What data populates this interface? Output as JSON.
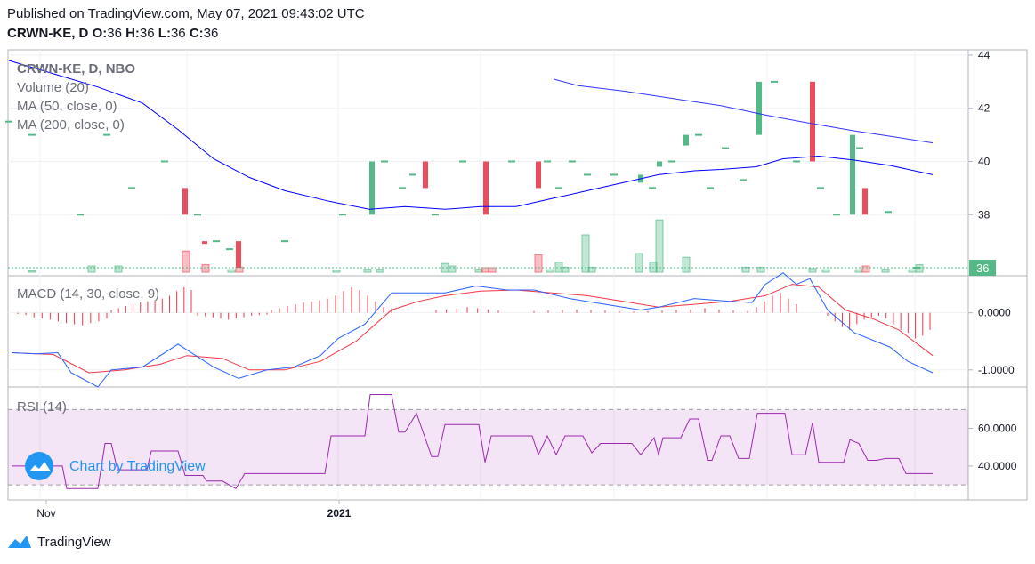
{
  "header": {
    "published": "Published on TradingView.com, May 07, 2021 09:43:02 UTC",
    "symbol": "CRWN-KE, D",
    "o_label": "O:",
    "o_value": "36",
    "h_label": "H:",
    "h_value": "36",
    "l_label": "L:",
    "l_value": "36",
    "c_label": "C:",
    "c_value": "36"
  },
  "footer": {
    "brand": "TradingView"
  },
  "watermark": "Chart by TradingView",
  "colors": {
    "up": "#53b987",
    "down": "#eb4d5c",
    "ma50": "#0000ff",
    "ma200": "#3333ff",
    "macd": "#2962ff",
    "signal": "#f23645",
    "rsi": "#9c27b0",
    "rsi_band": "#e7d3ee"
  },
  "chart_data": [
    {
      "type": "candlestick",
      "legend": [
        "CRWN-KE, D, NBO",
        "Volume (20)",
        "MA (50, close, 0)",
        "MA (200, close, 0)"
      ],
      "y_ticks": [
        "44",
        "42",
        "40",
        "38"
      ],
      "ylim": [
        35.7,
        44.2
      ],
      "last_price_label": "36",
      "last_price": 36,
      "x_ticks": [
        "Nov",
        "2021"
      ],
      "candles": [
        {
          "x": 10,
          "o": 41.5,
          "c": 41.5
        },
        {
          "x": 36,
          "o": 41,
          "c": 41
        },
        {
          "x": 90,
          "o": 38,
          "c": 38
        },
        {
          "x": 120,
          "o": 41,
          "c": 41
        },
        {
          "x": 148,
          "o": 39,
          "c": 39
        },
        {
          "x": 185,
          "o": 40,
          "c": 40
        },
        {
          "x": 208,
          "o": 39,
          "c": 38
        },
        {
          "x": 222,
          "o": 38,
          "c": 38
        },
        {
          "x": 230,
          "o": 37,
          "c": 36.9
        },
        {
          "x": 243,
          "o": 37,
          "c": 37
        },
        {
          "x": 258,
          "o": 36.7,
          "c": 36.7
        },
        {
          "x": 268,
          "o": 37,
          "c": 36
        },
        {
          "x": 320,
          "o": 37,
          "c": 37
        },
        {
          "x": 385,
          "o": 38,
          "c": 38
        },
        {
          "x": 418,
          "o": 38,
          "c": 40
        },
        {
          "x": 432,
          "o": 40,
          "c": 40
        },
        {
          "x": 452,
          "o": 39,
          "c": 39
        },
        {
          "x": 464,
          "o": 39.5,
          "c": 39.5
        },
        {
          "x": 478,
          "o": 40,
          "c": 39
        },
        {
          "x": 489,
          "o": 38,
          "c": 38
        },
        {
          "x": 520,
          "o": 40,
          "c": 40
        },
        {
          "x": 546,
          "o": 40,
          "c": 38
        },
        {
          "x": 575,
          "o": 40,
          "c": 40
        },
        {
          "x": 605,
          "o": 40,
          "c": 39
        },
        {
          "x": 615,
          "o": 40,
          "c": 40
        },
        {
          "x": 628,
          "o": 39,
          "c": 39
        },
        {
          "x": 643,
          "o": 40,
          "c": 40
        },
        {
          "x": 660,
          "o": 39.5,
          "c": 39.5
        },
        {
          "x": 690,
          "o": 39.5,
          "c": 39.5
        },
        {
          "x": 720,
          "o": 39.2,
          "c": 39.5
        },
        {
          "x": 733,
          "o": 39,
          "c": 39
        },
        {
          "x": 741,
          "o": 39.8,
          "c": 40
        },
        {
          "x": 755,
          "o": 40,
          "c": 40
        },
        {
          "x": 771,
          "o": 40.6,
          "c": 41
        },
        {
          "x": 785,
          "o": 41,
          "c": 41
        },
        {
          "x": 798,
          "o": 39,
          "c": 39
        },
        {
          "x": 815,
          "o": 40.5,
          "c": 40.5
        },
        {
          "x": 835,
          "o": 39.3,
          "c": 39.3
        },
        {
          "x": 853,
          "o": 41,
          "c": 43
        },
        {
          "x": 870,
          "o": 43,
          "c": 43
        },
        {
          "x": 895,
          "o": 40,
          "c": 40
        },
        {
          "x": 913,
          "o": 43,
          "c": 40
        },
        {
          "x": 922,
          "o": 39,
          "c": 39
        },
        {
          "x": 940,
          "o": 38,
          "c": 38
        },
        {
          "x": 958,
          "o": 38,
          "c": 41
        },
        {
          "x": 966,
          "o": 40.5,
          "c": 40.5
        },
        {
          "x": 972,
          "o": 39,
          "c": 38
        },
        {
          "x": 998,
          "o": 38.1,
          "c": 38.1
        },
        {
          "x": 1030,
          "o": 36,
          "c": 36
        }
      ],
      "volume": [
        {
          "x": 36,
          "v": 0.05,
          "up": true
        },
        {
          "x": 103,
          "v": 0.25,
          "up": true
        },
        {
          "x": 133,
          "v": 0.25,
          "up": true
        },
        {
          "x": 209,
          "v": 0.85,
          "up": false
        },
        {
          "x": 231,
          "v": 0.3,
          "up": false
        },
        {
          "x": 260,
          "v": 0.1,
          "up": true
        },
        {
          "x": 269,
          "v": 0.2,
          "up": false
        },
        {
          "x": 378,
          "v": 0.08,
          "up": true
        },
        {
          "x": 413,
          "v": 0.12,
          "up": true
        },
        {
          "x": 427,
          "v": 0.12,
          "up": true
        },
        {
          "x": 500,
          "v": 0.35,
          "up": true
        },
        {
          "x": 508,
          "v": 0.25,
          "up": true
        },
        {
          "x": 538,
          "v": 0.12,
          "up": true
        },
        {
          "x": 545,
          "v": 0.18,
          "up": false
        },
        {
          "x": 553,
          "v": 0.18,
          "up": false
        },
        {
          "x": 605,
          "v": 0.7,
          "up": false
        },
        {
          "x": 618,
          "v": 0.1,
          "up": true
        },
        {
          "x": 628,
          "v": 0.4,
          "up": true
        },
        {
          "x": 635,
          "v": 0.2,
          "up": true
        },
        {
          "x": 658,
          "v": 1.5,
          "up": true
        },
        {
          "x": 665,
          "v": 0.2,
          "up": true
        },
        {
          "x": 718,
          "v": 0.75,
          "up": true
        },
        {
          "x": 734,
          "v": 0.4,
          "up": true
        },
        {
          "x": 741,
          "v": 2.1,
          "up": true
        },
        {
          "x": 771,
          "v": 0.6,
          "up": true
        },
        {
          "x": 838,
          "v": 0.2,
          "up": true
        },
        {
          "x": 855,
          "v": 0.2,
          "up": true
        },
        {
          "x": 913,
          "v": 0.15,
          "up": true
        },
        {
          "x": 928,
          "v": 0.1,
          "up": true
        },
        {
          "x": 965,
          "v": 0.1,
          "up": true
        },
        {
          "x": 973,
          "v": 0.25,
          "up": false
        },
        {
          "x": 995,
          "v": 0.12,
          "up": true
        },
        {
          "x": 1025,
          "v": 0.1,
          "up": true
        },
        {
          "x": 1033,
          "v": 0.3,
          "up": true
        }
      ],
      "ma50": [
        [
          10,
          43.8
        ],
        [
          60,
          43.3
        ],
        [
          110,
          42.8
        ],
        [
          160,
          42.2
        ],
        [
          200,
          41.2
        ],
        [
          240,
          40.1
        ],
        [
          280,
          39.4
        ],
        [
          320,
          38.9
        ],
        [
          370,
          38.5
        ],
        [
          415,
          38.2
        ],
        [
          455,
          38.3
        ],
        [
          500,
          38.2
        ],
        [
          540,
          38.3
        ],
        [
          580,
          38.3
        ],
        [
          620,
          38.6
        ],
        [
          660,
          38.9
        ],
        [
          700,
          39.2
        ],
        [
          740,
          39.5
        ],
        [
          780,
          39.65
        ],
        [
          810,
          39.7
        ],
        [
          850,
          39.8
        ],
        [
          880,
          40.1
        ],
        [
          920,
          40.2
        ],
        [
          960,
          40.05
        ],
        [
          1000,
          39.85
        ],
        [
          1048,
          39.5
        ]
      ],
      "ma200": [
        [
          622,
          43.1
        ],
        [
          650,
          42.85
        ],
        [
          700,
          42.65
        ],
        [
          760,
          42.35
        ],
        [
          810,
          42.1
        ],
        [
          860,
          41.75
        ],
        [
          900,
          41.5
        ],
        [
          960,
          41.15
        ],
        [
          1000,
          40.95
        ],
        [
          1048,
          40.7
        ]
      ]
    },
    {
      "type": "macd",
      "legend": "MACD (14, 30, close, 9)",
      "y_ticks": [
        "0.0000",
        "-1.0000"
      ],
      "ylim": [
        -1.3,
        0.65
      ],
      "macd": [
        [
          13,
          -0.7
        ],
        [
          40,
          -0.72
        ],
        [
          65,
          -0.7
        ],
        [
          80,
          -1.05
        ],
        [
          110,
          -1.3
        ],
        [
          125,
          -1.0
        ],
        [
          160,
          -0.95
        ],
        [
          200,
          -0.55
        ],
        [
          240,
          -0.95
        ],
        [
          268,
          -1.15
        ],
        [
          300,
          -1.0
        ],
        [
          330,
          -0.95
        ],
        [
          360,
          -0.75
        ],
        [
          380,
          -0.45
        ],
        [
          410,
          -0.2
        ],
        [
          440,
          0.35
        ],
        [
          470,
          0.35
        ],
        [
          500,
          0.35
        ],
        [
          535,
          0.47
        ],
        [
          570,
          0.4
        ],
        [
          600,
          0.4
        ],
        [
          640,
          0.25
        ],
        [
          680,
          0.15
        ],
        [
          720,
          0.05
        ],
        [
          740,
          0.1
        ],
        [
          780,
          0.25
        ],
        [
          820,
          0.2
        ],
        [
          845,
          0.18
        ],
        [
          860,
          0.5
        ],
        [
          880,
          0.7
        ],
        [
          895,
          0.5
        ],
        [
          910,
          0.6
        ],
        [
          930,
          0.05
        ],
        [
          960,
          -0.35
        ],
        [
          1000,
          -0.6
        ],
        [
          1020,
          -0.85
        ],
        [
          1048,
          -1.05
        ]
      ],
      "signal": [
        [
          13,
          -0.7
        ],
        [
          60,
          -0.73
        ],
        [
          100,
          -1.05
        ],
        [
          140,
          -1.0
        ],
        [
          180,
          -0.9
        ],
        [
          210,
          -0.75
        ],
        [
          250,
          -0.8
        ],
        [
          280,
          -1.0
        ],
        [
          320,
          -1.0
        ],
        [
          360,
          -0.85
        ],
        [
          400,
          -0.5
        ],
        [
          440,
          0.05
        ],
        [
          470,
          0.2
        ],
        [
          500,
          0.3
        ],
        [
          540,
          0.38
        ],
        [
          580,
          0.4
        ],
        [
          620,
          0.35
        ],
        [
          660,
          0.3
        ],
        [
          700,
          0.2
        ],
        [
          740,
          0.1
        ],
        [
          780,
          0.15
        ],
        [
          820,
          0.2
        ],
        [
          860,
          0.3
        ],
        [
          890,
          0.5
        ],
        [
          920,
          0.45
        ],
        [
          950,
          0.05
        ],
        [
          980,
          -0.1
        ],
        [
          1010,
          -0.3
        ],
        [
          1048,
          -0.75
        ]
      ],
      "hist_up": [
        0.05,
        0.08,
        0.12,
        0.15,
        0.18,
        0.2,
        0.22,
        0.25,
        0.3,
        0.38,
        0.45,
        0.4,
        0.3,
        0.2,
        0.1,
        0.08
      ],
      "hist_down": [
        0.05,
        0.15,
        0.25,
        0.3,
        0.2,
        0.12,
        0.08,
        0.05,
        0.1,
        0.2,
        0.3,
        0.35,
        0.45,
        0.4,
        0.3
      ]
    },
    {
      "type": "rsi",
      "legend": "RSI (14)",
      "y_ticks": [
        "60.0000",
        "40.0000"
      ],
      "ylim": [
        22,
        82
      ],
      "band": [
        30,
        70
      ],
      "rsi": [
        [
          13,
          40
        ],
        [
          40,
          40
        ],
        [
          70,
          40
        ],
        [
          75,
          28
        ],
        [
          110,
          28
        ],
        [
          118,
          52
        ],
        [
          125,
          52
        ],
        [
          132,
          38
        ],
        [
          165,
          38
        ],
        [
          170,
          48
        ],
        [
          200,
          48
        ],
        [
          208,
          35
        ],
        [
          228,
          35
        ],
        [
          232,
          32
        ],
        [
          250,
          32
        ],
        [
          265,
          28
        ],
        [
          275,
          36
        ],
        [
          365,
          36
        ],
        [
          372,
          56
        ],
        [
          410,
          56
        ],
        [
          416,
          78
        ],
        [
          440,
          78
        ],
        [
          448,
          58
        ],
        [
          455,
          58
        ],
        [
          468,
          68
        ],
        [
          485,
          45
        ],
        [
          492,
          45
        ],
        [
          500,
          62
        ],
        [
          538,
          62
        ],
        [
          545,
          42
        ],
        [
          552,
          56
        ],
        [
          598,
          56
        ],
        [
          605,
          46
        ],
        [
          615,
          56
        ],
        [
          625,
          46
        ],
        [
          635,
          56
        ],
        [
          655,
          56
        ],
        [
          665,
          47
        ],
        [
          675,
          52
        ],
        [
          710,
          52
        ],
        [
          720,
          46
        ],
        [
          735,
          55
        ],
        [
          740,
          46
        ],
        [
          745,
          55
        ],
        [
          765,
          55
        ],
        [
          775,
          65
        ],
        [
          785,
          65
        ],
        [
          795,
          43
        ],
        [
          800,
          43
        ],
        [
          810,
          56
        ],
        [
          820,
          56
        ],
        [
          830,
          44
        ],
        [
          842,
          44
        ],
        [
          851,
          68
        ],
        [
          882,
          68
        ],
        [
          890,
          46
        ],
        [
          905,
          46
        ],
        [
          913,
          63
        ],
        [
          920,
          42
        ],
        [
          948,
          42
        ],
        [
          955,
          54
        ],
        [
          965,
          52
        ],
        [
          975,
          43
        ],
        [
          985,
          43
        ],
        [
          995,
          44
        ],
        [
          1010,
          44
        ],
        [
          1018,
          36
        ],
        [
          1048,
          36
        ]
      ]
    }
  ]
}
